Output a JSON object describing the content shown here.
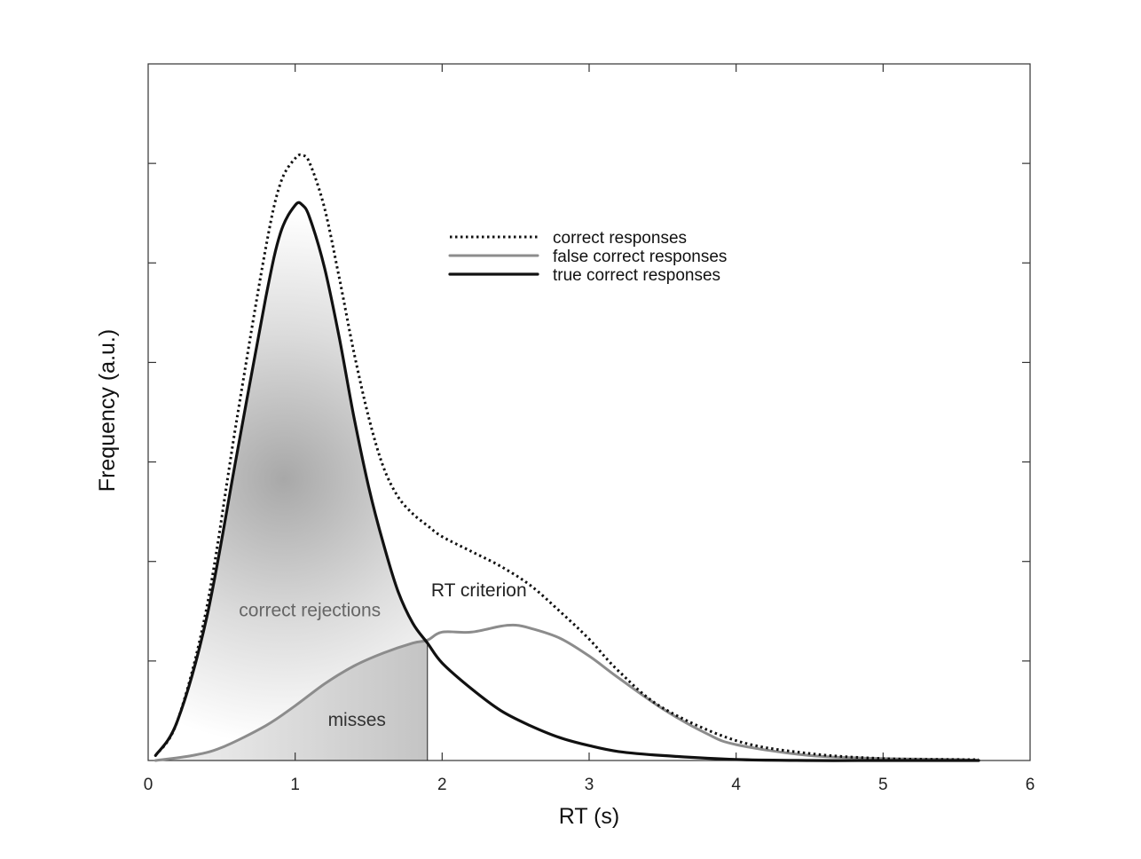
{
  "chart_data": {
    "type": "line",
    "title": "",
    "xlabel": "RT (s)",
    "ylabel": "Frequency (a.u.)",
    "xlim": [
      0,
      6
    ],
    "ylim": [
      0,
      7
    ],
    "x_ticks": [
      "0",
      "1",
      "2",
      "3",
      "4",
      "5",
      "6"
    ],
    "y_tick_count": 6,
    "y_tick_labels_shown": false,
    "grid": false,
    "legend": {
      "position": "top-center"
    },
    "series": [
      {
        "name": "correct responses",
        "style": "dotted",
        "color": "#111111",
        "x": [
          0.05,
          0.2,
          0.4,
          0.6,
          0.8,
          0.9,
          1.0,
          1.05,
          1.1,
          1.2,
          1.3,
          1.4,
          1.5,
          1.6,
          1.7,
          1.8,
          1.9,
          2.0,
          2.2,
          2.4,
          2.6,
          2.8,
          3.0,
          3.2,
          3.5,
          4.0,
          4.5,
          5.0,
          5.5,
          5.65
        ],
        "y": [
          0.05,
          0.4,
          1.55,
          3.4,
          5.15,
          5.8,
          6.05,
          6.08,
          6.0,
          5.55,
          4.85,
          4.1,
          3.45,
          2.95,
          2.65,
          2.48,
          2.36,
          2.25,
          2.1,
          1.95,
          1.76,
          1.5,
          1.22,
          0.9,
          0.53,
          0.2,
          0.07,
          0.02,
          0.01,
          0.01
        ]
      },
      {
        "name": "false correct responses",
        "style": "solid",
        "color": "#8c8c8c",
        "x": [
          0.05,
          0.3,
          0.5,
          0.8,
          1.0,
          1.2,
          1.4,
          1.6,
          1.8,
          1.9,
          2.0,
          2.2,
          2.4,
          2.5,
          2.6,
          2.8,
          3.0,
          3.2,
          3.5,
          3.8,
          4.0,
          4.5,
          5.0,
          5.5,
          5.65
        ],
        "y": [
          0.0,
          0.05,
          0.13,
          0.35,
          0.55,
          0.77,
          0.95,
          1.08,
          1.18,
          1.21,
          1.29,
          1.29,
          1.35,
          1.36,
          1.33,
          1.23,
          1.05,
          0.83,
          0.52,
          0.27,
          0.16,
          0.05,
          0.02,
          0.01,
          0.0
        ]
      },
      {
        "name": "true correct responses",
        "style": "solid",
        "color": "#111111",
        "x": [
          0.05,
          0.2,
          0.4,
          0.6,
          0.8,
          0.9,
          1.0,
          1.05,
          1.1,
          1.2,
          1.3,
          1.4,
          1.5,
          1.6,
          1.7,
          1.8,
          1.9,
          2.0,
          2.2,
          2.4,
          2.6,
          2.8,
          3.0,
          3.2,
          3.5,
          4.0,
          4.5,
          5.0,
          5.5,
          5.65
        ],
        "y": [
          0.05,
          0.4,
          1.45,
          3.05,
          4.65,
          5.3,
          5.58,
          5.58,
          5.45,
          4.95,
          4.25,
          3.45,
          2.75,
          2.18,
          1.7,
          1.38,
          1.18,
          0.98,
          0.72,
          0.5,
          0.35,
          0.23,
          0.15,
          0.09,
          0.05,
          0.01,
          0.0,
          0.0,
          0.0,
          0.0
        ]
      }
    ],
    "annotations": [
      {
        "text": "correct rejections",
        "x": 1.1,
        "y": 1.45,
        "color": "#666666"
      },
      {
        "text": "misses",
        "x": 1.42,
        "y": 0.35,
        "color": "#333333"
      },
      {
        "text": "RT criterion",
        "x": 2.25,
        "y": 1.65,
        "color": "#222222"
      }
    ],
    "criterion_x": 1.9
  }
}
